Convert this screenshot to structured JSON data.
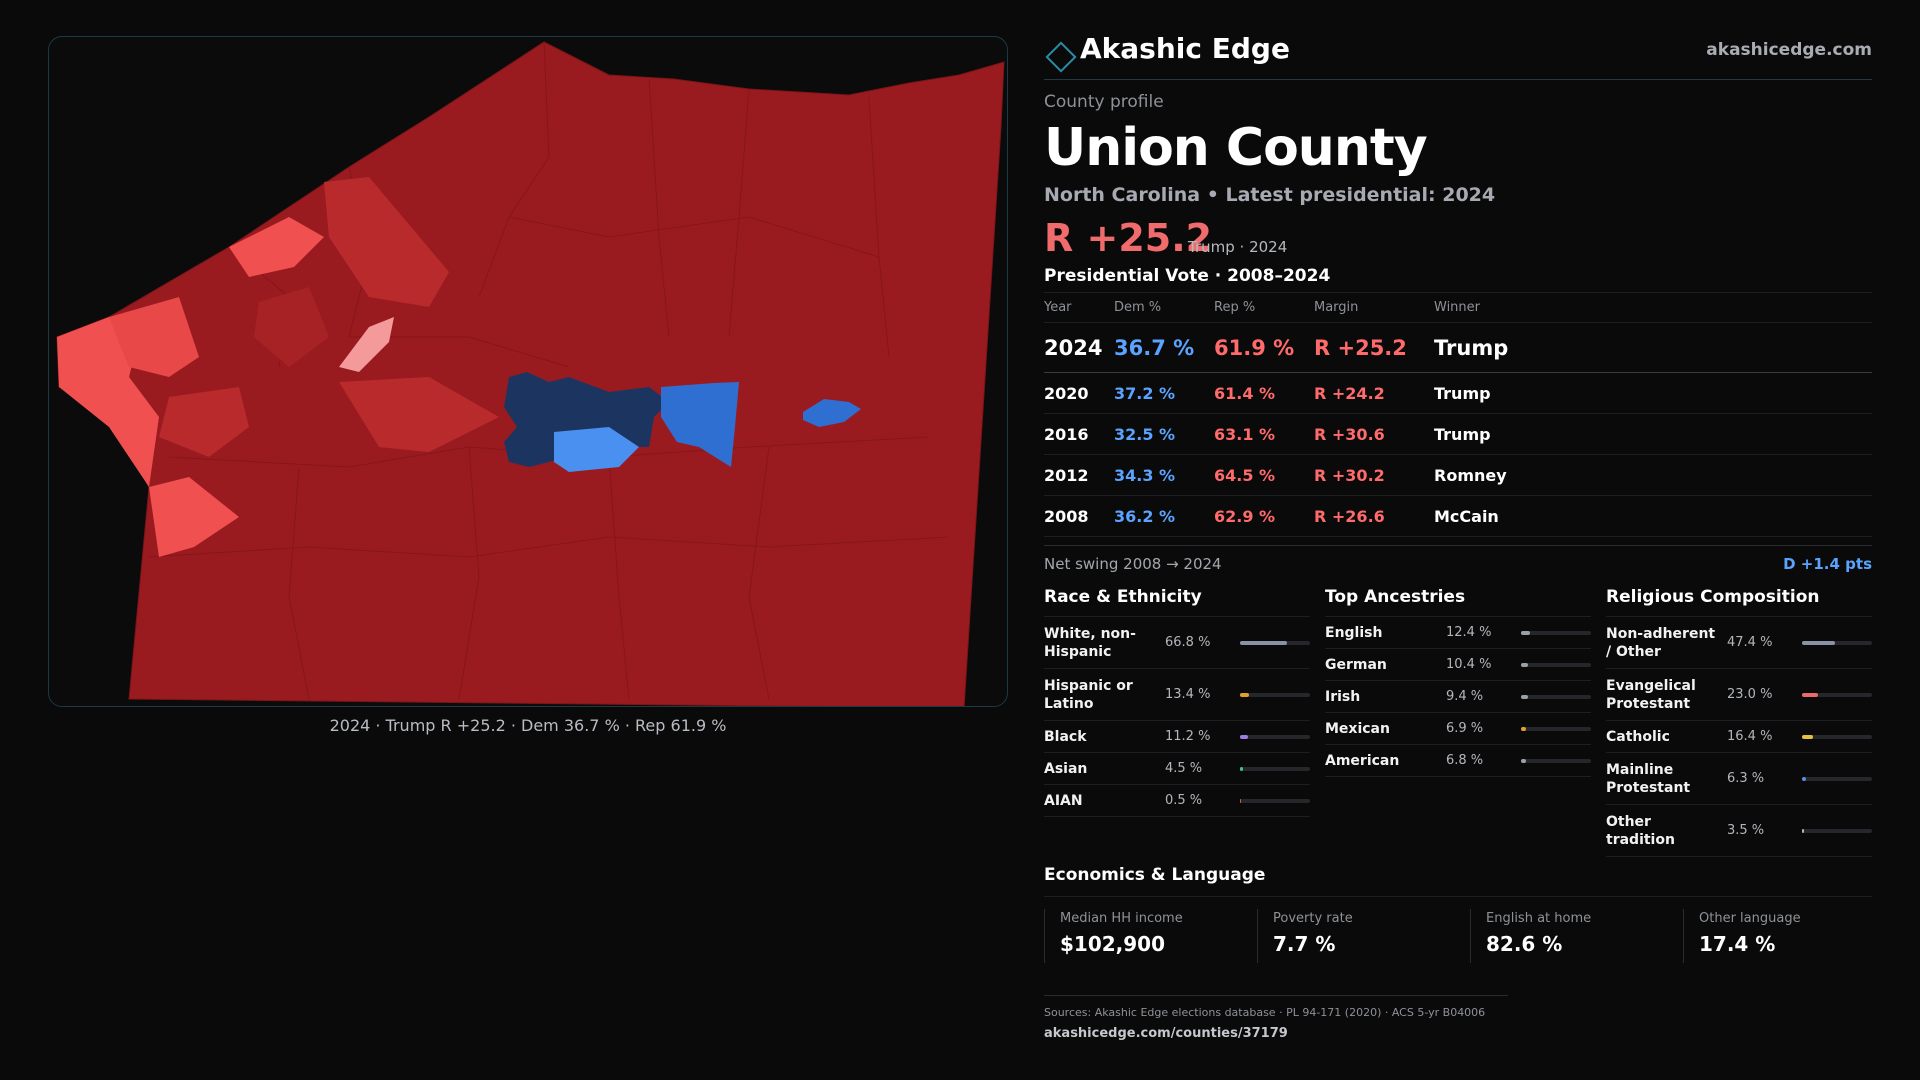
{
  "map": {
    "caption": "2024 · Trump R +25.2 · Dem 36.7 % · Rep 61.9 %",
    "colors": {
      "rep_strong": "#9a1b1f",
      "rep_mid": "#b92a2c",
      "rep_light": "#f05050",
      "rep_pale": "#f59a9a",
      "dem_strong": "#1c3560",
      "dem_mid": "#2f6fd1",
      "dem_light": "#4a90f0"
    }
  },
  "brand": {
    "name": "Akashic Edge",
    "url": "akashicedge.com",
    "icon": "diamond-icon"
  },
  "profile": {
    "eyebrow": "County profile",
    "title": "Union County",
    "subline": "North Carolina • Latest presidential: 2024",
    "margin": "R +25.2",
    "margin_sub": "Trump · 2024"
  },
  "votes": {
    "title": "Presidential Vote · 2008–2024",
    "headers": {
      "year": "Year",
      "dem": "Dem %",
      "rep": "Rep %",
      "margin": "Margin",
      "winner": "Winner"
    },
    "rows": [
      {
        "year": "2024",
        "dem": "36.7 %",
        "rep": "61.9 %",
        "margin": "R +25.2",
        "winner": "Trump"
      },
      {
        "year": "2020",
        "dem": "37.2 %",
        "rep": "61.4 %",
        "margin": "R +24.2",
        "winner": "Trump"
      },
      {
        "year": "2016",
        "dem": "32.5 %",
        "rep": "63.1 %",
        "margin": "R +30.6",
        "winner": "Trump"
      },
      {
        "year": "2012",
        "dem": "34.3 %",
        "rep": "64.5 %",
        "margin": "R +30.2",
        "winner": "Romney"
      },
      {
        "year": "2008",
        "dem": "36.2 %",
        "rep": "62.9 %",
        "margin": "R +26.6",
        "winner": "McCain"
      }
    ],
    "swing_label": "Net swing 2008 → 2024",
    "swing_value": "D +1.4 pts"
  },
  "demographics": [
    {
      "title": "Race & Ethnicity",
      "items": [
        {
          "name": "White, non-Hispanic",
          "value": "66.8 %",
          "pct": 66.8,
          "color": "#8a93a6"
        },
        {
          "name": "Hispanic or Latino",
          "value": "13.4 %",
          "pct": 13.4,
          "color": "#e0a030"
        },
        {
          "name": "Black",
          "value": "11.2 %",
          "pct": 11.2,
          "color": "#9b7fe0"
        },
        {
          "name": "Asian",
          "value": "4.5 %",
          "pct": 4.5,
          "color": "#3fbfa0"
        },
        {
          "name": "AIAN",
          "value": "0.5 %",
          "pct": 0.5,
          "color": "#d0603a"
        }
      ]
    },
    {
      "title": "Top Ancestries",
      "items": [
        {
          "name": "English",
          "value": "12.4 %",
          "pct": 12.4,
          "color": "#9aa0ab"
        },
        {
          "name": "German",
          "value": "10.4 %",
          "pct": 10.4,
          "color": "#9aa0ab"
        },
        {
          "name": "Irish",
          "value": "9.4 %",
          "pct": 9.4,
          "color": "#9aa0ab"
        },
        {
          "name": "Mexican",
          "value": "6.9 %",
          "pct": 6.9,
          "color": "#e0a030"
        },
        {
          "name": "American",
          "value": "6.8 %",
          "pct": 6.8,
          "color": "#9aa0ab"
        }
      ]
    },
    {
      "title": "Religious Composition",
      "items": [
        {
          "name": "Non-adherent / Other",
          "value": "47.4 %",
          "pct": 47.4,
          "color": "#8a93a6"
        },
        {
          "name": "Evangelical Protestant",
          "value": "23.0 %",
          "pct": 23.0,
          "color": "#e86a6a"
        },
        {
          "name": "Catholic",
          "value": "16.4 %",
          "pct": 16.4,
          "color": "#e8c040"
        },
        {
          "name": "Mainline Protestant",
          "value": "6.3 %",
          "pct": 6.3,
          "color": "#5a8ee0"
        },
        {
          "name": "Other tradition",
          "value": "3.5 %",
          "pct": 3.5,
          "color": "#b0b3b8"
        }
      ]
    }
  ],
  "economics": {
    "title": "Economics & Language",
    "cells": [
      {
        "label": "Median HH income",
        "value": "$102,900"
      },
      {
        "label": "Poverty rate",
        "value": "7.7 %"
      },
      {
        "label": "English at home",
        "value": "82.6 %"
      },
      {
        "label": "Other language",
        "value": "17.4 %"
      }
    ]
  },
  "footer": {
    "sources": "Sources: Akashic Edge elections database · PL 94-171 (2020) · ACS 5-yr B04006",
    "url": "akashicedge.com/counties/37179"
  }
}
